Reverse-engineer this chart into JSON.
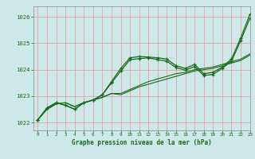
{
  "title": "Graphe pression niveau de la mer (hPa)",
  "background_color": "#cce8e8",
  "grid_color": "#e8a0a0",
  "line_color": "#1a6b1a",
  "xlim": [
    -0.5,
    23
  ],
  "ylim": [
    1021.7,
    1026.4
  ],
  "yticks": [
    1022,
    1023,
    1024,
    1025,
    1026
  ],
  "xticks": [
    0,
    1,
    2,
    3,
    4,
    5,
    6,
    7,
    8,
    9,
    10,
    11,
    12,
    13,
    14,
    15,
    16,
    17,
    18,
    19,
    20,
    21,
    22,
    23
  ],
  "series": [
    {
      "x": [
        0,
        1,
        2,
        3,
        4,
        5,
        6,
        7,
        8,
        9,
        10,
        11,
        12,
        13,
        14,
        15,
        16,
        17,
        18,
        19,
        20,
        21,
        22,
        23
      ],
      "y": [
        1022.1,
        1022.5,
        1022.7,
        1022.75,
        1022.6,
        1022.75,
        1022.85,
        1022.95,
        1023.1,
        1023.05,
        1023.2,
        1023.35,
        1023.45,
        1023.55,
        1023.65,
        1023.75,
        1023.85,
        1023.95,
        1024.0,
        1024.05,
        1024.15,
        1024.25,
        1024.35,
        1024.55
      ],
      "marker": false,
      "lw": 0.8
    },
    {
      "x": [
        0,
        1,
        2,
        3,
        4,
        5,
        6,
        7,
        8,
        9,
        10,
        11,
        12,
        13,
        14,
        15,
        16,
        17,
        18,
        19,
        20,
        21,
        22,
        23
      ],
      "y": [
        1022.1,
        1022.5,
        1022.7,
        1022.75,
        1022.6,
        1022.75,
        1022.85,
        1022.95,
        1023.1,
        1023.1,
        1023.25,
        1023.4,
        1023.55,
        1023.65,
        1023.75,
        1023.85,
        1023.9,
        1024.0,
        1024.05,
        1024.1,
        1024.2,
        1024.3,
        1024.4,
        1024.6
      ],
      "marker": false,
      "lw": 0.8
    },
    {
      "x": [
        0,
        1,
        2,
        3,
        4,
        5,
        6,
        7,
        8,
        9,
        10,
        11,
        12,
        13,
        14,
        15,
        16,
        17,
        18,
        19,
        20,
        21,
        22,
        23
      ],
      "y": [
        1022.1,
        1022.55,
        1022.75,
        1022.65,
        1022.5,
        1022.75,
        1022.85,
        1023.05,
        1023.55,
        1024.05,
        1024.45,
        1024.5,
        1024.48,
        1024.45,
        1024.4,
        1024.15,
        1024.05,
        1024.2,
        1023.85,
        1023.9,
        1024.1,
        1024.4,
        1025.2,
        1026.1
      ],
      "marker": true,
      "lw": 0.9
    },
    {
      "x": [
        0,
        1,
        2,
        3,
        4,
        5,
        6,
        7,
        8,
        9,
        10,
        11,
        12,
        13,
        14,
        15,
        16,
        17,
        18,
        19,
        20,
        21,
        22,
        23
      ],
      "y": [
        1022.1,
        1022.55,
        1022.75,
        1022.65,
        1022.5,
        1022.75,
        1022.85,
        1023.05,
        1023.5,
        1023.95,
        1024.38,
        1024.42,
        1024.45,
        1024.38,
        1024.32,
        1024.08,
        1023.98,
        1024.12,
        1023.78,
        1023.82,
        1024.05,
        1024.32,
        1025.1,
        1025.95
      ],
      "marker": true,
      "lw": 0.9
    }
  ]
}
